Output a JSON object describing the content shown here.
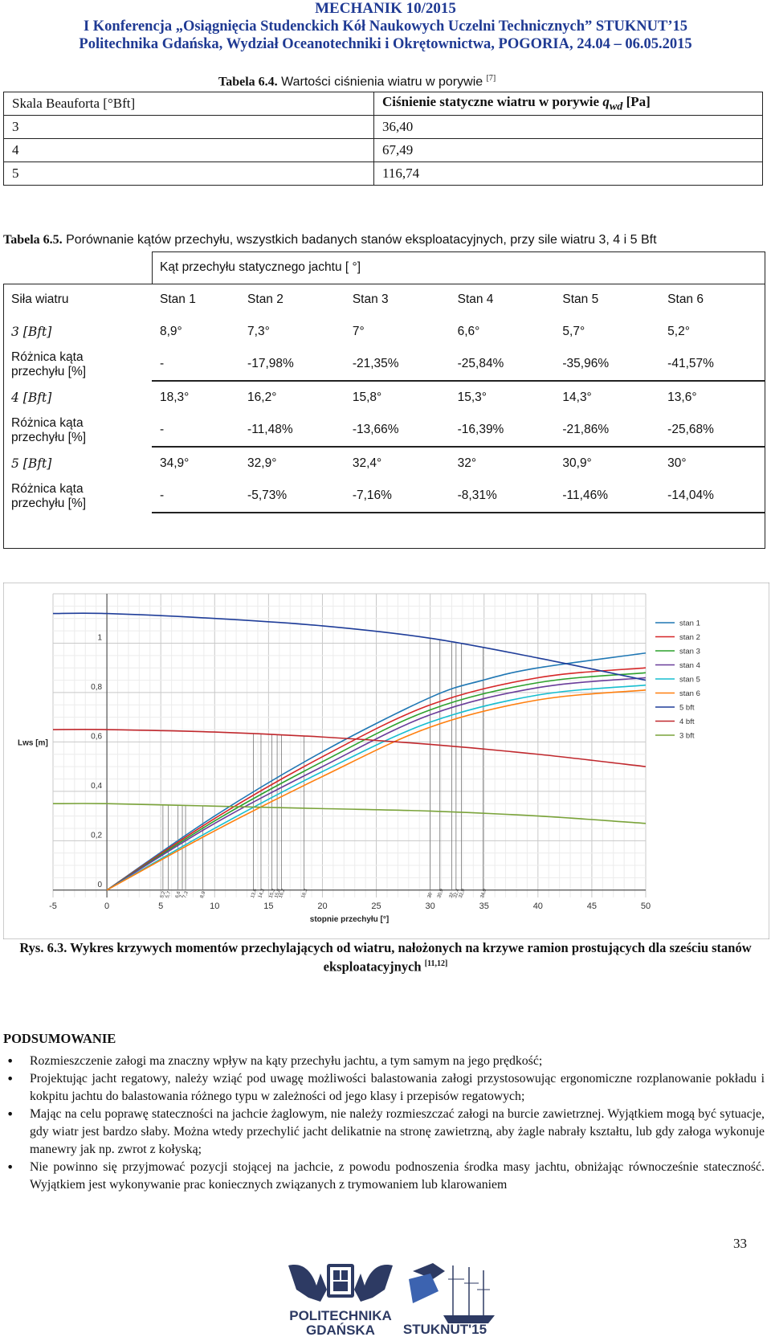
{
  "header": {
    "line1": "MECHANIK 10/2015",
    "line2": "I Konferencja „Osiągnięcia Studenckich Kół Naukowych Uczelni Technicznych” STUKNUT’15",
    "line3": "Politechnika Gdańska, Wydział Oceanotechniki i Okrętownictwa, POGORIA, 24.04 – 06.05.2015"
  },
  "table64": {
    "caption_bold": "Tabela 6.4.",
    "caption_text": " Wartości ciśnienia wiatru w porywie ",
    "caption_ref": "[7]",
    "head_left": "Skala Beauforta [°Bft]",
    "head_right_prefix": "Ciśnienie statyczne wiatru w porywie ",
    "head_right_var": "q",
    "head_right_sub": "wd",
    "head_right_suffix": " [Pa]",
    "rows": [
      {
        "bft": "3",
        "p": "36,40"
      },
      {
        "bft": "4",
        "p": "67,49"
      },
      {
        "bft": "5",
        "p": "116,74"
      }
    ]
  },
  "table65": {
    "caption_bold": "Tabela 6.5.",
    "caption_text": " Porównanie kątów przechyłu, wszystkich badanych stanów eksploatacyjnych, przy sile wiatru 3, 4 i 5 Bft",
    "group_header": "Kąt przechyłu statycznego jachtu [ °]",
    "col_first": "Siła wiatru",
    "cols": [
      "Stan 1",
      "Stan 2",
      "Stan 3",
      "Stan 4",
      "Stan 5",
      "Stan 6"
    ],
    "diff_label_1": "Różnica kąta",
    "diff_label_2": "przechyłu [%]",
    "blocks": [
      {
        "force": "3 [Bft]",
        "angles": [
          "8,9°",
          "7,3°",
          "7°",
          "6,6°",
          "5,7°",
          "5,2°"
        ],
        "diffs": [
          "-",
          "-17,98%",
          "-21,35%",
          "-25,84%",
          "-35,96%",
          "-41,57%"
        ]
      },
      {
        "force": "4 [Bft]",
        "angles": [
          "18,3°",
          "16,2°",
          "15,8°",
          "15,3°",
          "14,3°",
          "13,6°"
        ],
        "diffs": [
          "-",
          "-11,48%",
          "-13,66%",
          "-16,39%",
          "-21,86%",
          "-25,68%"
        ]
      },
      {
        "force": "5 [Bft]",
        "angles": [
          "34,9°",
          "32,9°",
          "32,4°",
          "32°",
          "30,9°",
          "30°"
        ],
        "diffs": [
          "-",
          "-5,73%",
          "-7,16%",
          "-8,31%",
          "-11,46%",
          "-14,04%"
        ]
      }
    ]
  },
  "chart_data": {
    "type": "line",
    "ylabel": "Lws [m]",
    "xlabel": "stopnie przechyłu [°]",
    "xlim": [
      -5,
      50
    ],
    "ylim": [
      -0.03,
      1.2
    ],
    "x_ticks": [
      "-5",
      "0",
      "5",
      "10",
      "15",
      "20",
      "25",
      "30",
      "35",
      "40",
      "45",
      "50"
    ],
    "y_ticks": [
      "0",
      "0,2",
      "0,4",
      "0,6",
      "0,8",
      "1"
    ],
    "grid": true,
    "legend_position": "right",
    "series": [
      {
        "name": "stan 1",
        "color": "#1f77b4",
        "values": [
          [
            0,
            0.0
          ],
          [
            10,
            0.3
          ],
          [
            20,
            0.56
          ],
          [
            30,
            0.78
          ],
          [
            34.9,
            0.85
          ],
          [
            40,
            0.9
          ],
          [
            50,
            0.96
          ]
        ]
      },
      {
        "name": "stan 2",
        "color": "#d62728",
        "values": [
          [
            0,
            0.0
          ],
          [
            10,
            0.29
          ],
          [
            20,
            0.54
          ],
          [
            30,
            0.75
          ],
          [
            40,
            0.86
          ],
          [
            50,
            0.9
          ]
        ]
      },
      {
        "name": "stan 3",
        "color": "#2ca02c",
        "values": [
          [
            0,
            0.0
          ],
          [
            10,
            0.28
          ],
          [
            20,
            0.52
          ],
          [
            30,
            0.73
          ],
          [
            40,
            0.84
          ],
          [
            50,
            0.88
          ]
        ]
      },
      {
        "name": "stan 4",
        "color": "#6a3d9a",
        "values": [
          [
            0,
            0.0
          ],
          [
            10,
            0.27
          ],
          [
            20,
            0.5
          ],
          [
            30,
            0.71
          ],
          [
            40,
            0.82
          ],
          [
            50,
            0.86
          ]
        ]
      },
      {
        "name": "stan 5",
        "color": "#17becf",
        "values": [
          [
            0,
            0.0
          ],
          [
            10,
            0.25
          ],
          [
            20,
            0.48
          ],
          [
            30,
            0.68
          ],
          [
            40,
            0.79
          ],
          [
            50,
            0.83
          ]
        ]
      },
      {
        "name": "stan 6",
        "color": "#ff7f0e",
        "values": [
          [
            0,
            0.0
          ],
          [
            10,
            0.24
          ],
          [
            20,
            0.46
          ],
          [
            30,
            0.66
          ],
          [
            40,
            0.77
          ],
          [
            50,
            0.81
          ]
        ]
      },
      {
        "name": "5 bft",
        "color": "#1f3d99",
        "values": [
          [
            -5,
            1.12
          ],
          [
            0,
            1.12
          ],
          [
            10,
            1.1
          ],
          [
            20,
            1.07
          ],
          [
            30,
            1.02
          ],
          [
            40,
            0.94
          ],
          [
            50,
            0.85
          ]
        ]
      },
      {
        "name": "4 bft",
        "color": "#c0282d",
        "values": [
          [
            -5,
            0.65
          ],
          [
            0,
            0.65
          ],
          [
            10,
            0.64
          ],
          [
            20,
            0.62
          ],
          [
            30,
            0.59
          ],
          [
            40,
            0.55
          ],
          [
            50,
            0.5
          ]
        ]
      },
      {
        "name": "3 bft",
        "color": "#7aa33a",
        "values": [
          [
            -5,
            0.35
          ],
          [
            0,
            0.35
          ],
          [
            10,
            0.34
          ],
          [
            20,
            0.33
          ],
          [
            30,
            0.32
          ],
          [
            40,
            0.3
          ],
          [
            50,
            0.27
          ]
        ]
      }
    ],
    "equilibrium_angles": [
      5.2,
      5.7,
      6.6,
      7.0,
      7.3,
      8.9,
      13.6,
      14.3,
      15.3,
      15.8,
      16.2,
      18.3,
      30.0,
      30.9,
      32.0,
      32.4,
      32.9,
      34.9
    ],
    "equilibrium_labels": [
      "5,2",
      "5,7",
      "6,6",
      "7",
      "7,3",
      "8,9",
      "13,6",
      "14,3",
      "15,3",
      "15,8",
      "16,2",
      "18,3",
      "30",
      "30,9",
      "32",
      "32,4",
      "32,9",
      "34,9"
    ]
  },
  "figure": {
    "cap_prefix": "Rys. 6.3. ",
    "cap_text": "Wykres krzywych momentów przechylających od wiatru, nałożonych na krzywe ramion prostujących dla sześciu stanów eksploatacyjnych",
    "cap_ref": "[11,12]"
  },
  "summary": {
    "title": "PODSUMOWANIE",
    "bullets": [
      "Rozmieszczenie załogi ma znaczny wpływ na kąty przechyłu jachtu, a tym samym na jego prędkość;",
      "Projektując jacht regatowy, należy wziąć pod uwagę możliwości balastowania załogi przystosowując ergonomiczne rozplanowanie pokładu i kokpitu jachtu do balastowania różnego typu w zależności od jego klasy i przepisów regatowych;",
      "Mając na celu poprawę stateczności na jachcie żaglowym, nie należy rozmieszczać załogi na burcie zawietrznej. Wyjątkiem mogą być sytuacje, gdy wiatr jest bardzo słaby. Można wtedy przechylić jacht delikatnie na stronę zawietrzną, aby żagle nabrały kształtu, lub gdy załoga wykonuje manewry jak np. zwrot z kołyską;",
      "Nie powinno się przyjmować pozycji stojącej na jachcie, z powodu podnoszenia środka masy jachtu, obniżając równocześnie stateczność. Wyjątkiem jest wykonywanie prac koniecznych związanych z trymowaniem lub klarowaniem"
    ]
  },
  "page_number": "33",
  "logos": {
    "pg_text_1": "POLITECHNIKA",
    "pg_text_2": "GDAŃSKA",
    "stuknut_text": "STUKNUT'15"
  }
}
